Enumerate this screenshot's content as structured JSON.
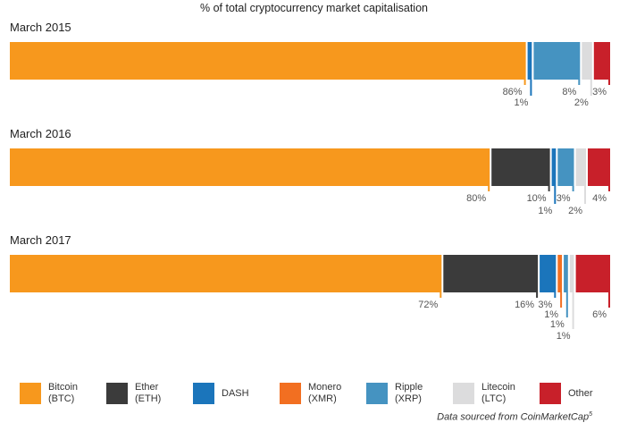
{
  "chart_data": {
    "type": "bar",
    "orientation": "horizontal-stacked",
    "title": "% of total cryptocurrency market capitalisation",
    "categories": [
      "March 2015",
      "March 2016",
      "March 2017"
    ],
    "series": [
      {
        "name": "Bitcoin (BTC)",
        "color": "#f7981d",
        "values": [
          86,
          80,
          72
        ],
        "labels": [
          "86%",
          "80%",
          "72%"
        ]
      },
      {
        "name": "Ether (ETH)",
        "color": "#3b3b3b",
        "values": [
          0,
          10,
          16
        ],
        "labels": [
          "",
          "10%",
          "16%"
        ]
      },
      {
        "name": "DASH",
        "color": "#1b75bb",
        "values": [
          1,
          1,
          3
        ],
        "labels": [
          "1%",
          "1%",
          "3%"
        ]
      },
      {
        "name": "Monero (XMR)",
        "color": "#f26f21",
        "values": [
          0,
          0,
          1
        ],
        "labels": [
          "",
          "",
          "1%"
        ]
      },
      {
        "name": "Ripple (XRP)",
        "color": "#4593c1",
        "values": [
          8,
          3,
          1
        ],
        "labels": [
          "8%",
          "3%",
          "1%"
        ]
      },
      {
        "name": "Litecoin (LTC)",
        "color": "#dcdcdd",
        "values": [
          2,
          2,
          1
        ],
        "labels": [
          "2%",
          "2%",
          "1%"
        ]
      },
      {
        "name": "Other",
        "color": "#c8202a",
        "values": [
          3,
          4,
          6
        ],
        "labels": [
          "3%",
          "4%",
          "6%"
        ]
      }
    ],
    "xlim": [
      0,
      100
    ],
    "legend": [
      {
        "label": "Bitcoin\n(BTC)",
        "color": "#f7981d"
      },
      {
        "label": "Ether\n(ETH)",
        "color": "#3b3b3b"
      },
      {
        "label": "DASH",
        "color": "#1b75bb"
      },
      {
        "label": "Monero\n(XMR)",
        "color": "#f26f21"
      },
      {
        "label": "Ripple\n(XRP)",
        "color": "#4593c1"
      },
      {
        "label": "Litecoin\n(LTC)",
        "color": "#dcdcdd"
      },
      {
        "label": "Other",
        "color": "#c8202a"
      }
    ],
    "legend_position": "bottom",
    "grid": false
  },
  "source": {
    "text": "Data sourced from CoinMarketCap",
    "footnote": "5"
  }
}
